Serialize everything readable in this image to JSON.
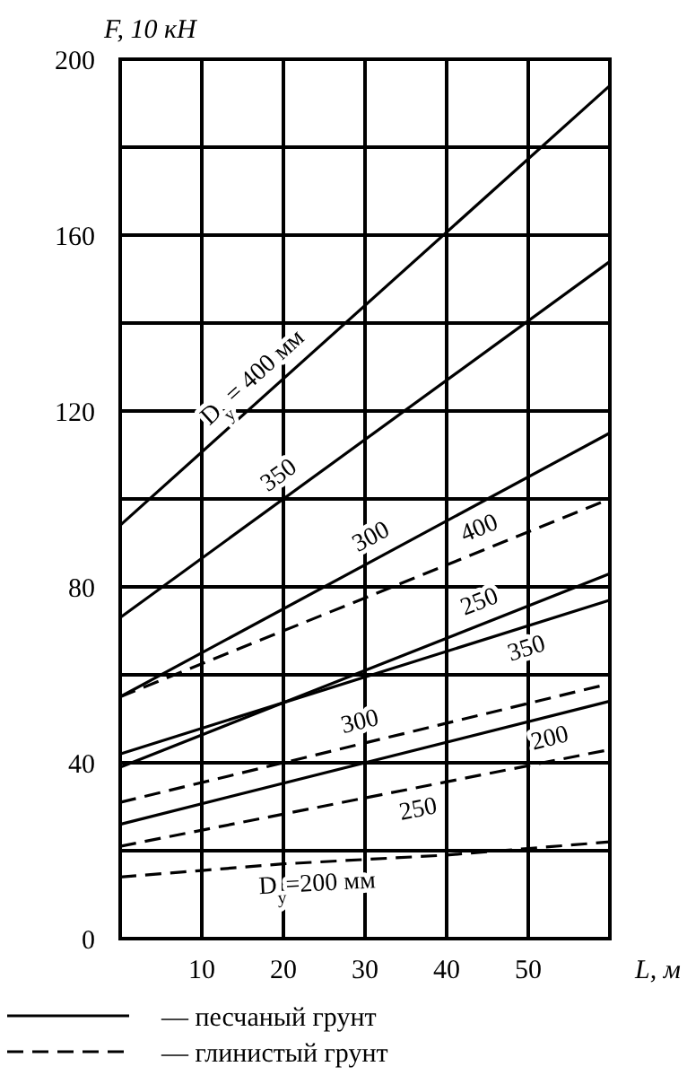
{
  "chart_data": {
    "type": "line",
    "title": null,
    "ylabel": "F, 10 кН",
    "xlabel": "L, м",
    "x": [
      0,
      60
    ],
    "xlim": [
      0,
      60
    ],
    "ylim": [
      0,
      200
    ],
    "xticks": [
      10,
      20,
      30,
      40,
      50
    ],
    "yticks": [
      0,
      {
        "value": 20,
        "label": null
      },
      40,
      {
        "value": 60,
        "label": null
      },
      80,
      {
        "value": 100,
        "label": null
      },
      120,
      {
        "value": 140,
        "label": null
      },
      160,
      {
        "value": 180,
        "label": null
      },
      200
    ],
    "grid": true,
    "legend": "bottom",
    "marker": "none",
    "series": [
      {
        "name": "— песчаный грунт",
        "color": "#000000",
        "line_style": "solid",
        "values": [
          94,
          194
        ]
      },
      {
        "color": "#000000",
        "line_style": "solid",
        "values": [
          73,
          154
        ]
      },
      {
        "color": "#000000",
        "line_style": "solid",
        "values": [
          55,
          115
        ]
      },
      {
        "color": "#000000",
        "line_style": "solid",
        "values": [
          39,
          83
        ]
      },
      {
        "color": "#000000",
        "line_style": "solid",
        "values": [
          42,
          77
        ]
      },
      {
        "color": "#000000",
        "line_style": "solid",
        "values": [
          26,
          54
        ]
      },
      {
        "name": "— глинистый грунт",
        "color": "#000000",
        "line_style": "dashed",
        "values": [
          55,
          100
        ]
      },
      {
        "color": "#000000",
        "line_style": "dashed",
        "values": [
          31,
          58
        ]
      },
      {
        "color": "#000000",
        "line_style": "dashed",
        "values": [
          21,
          43
        ]
      },
      {
        "color": "#000000",
        "line_style": "dashed",
        "x": [
          0,
          10,
          20,
          30,
          40,
          50,
          60
        ],
        "values": [
          14,
          15.5,
          17,
          18,
          19,
          20.5,
          22
        ]
      }
    ],
    "annotations": [
      {
        "text": "D$_{y}$ = 400 мм",
        "x": 18,
        "y": 124
      },
      {
        "text": "350",
        "x": 21,
        "y": 101.35
      },
      {
        "text": "300",
        "x": 32,
        "y": 87
      },
      {
        "text": "400",
        "x": 45,
        "y": 88.75
      },
      {
        "text": "250",
        "x": 45,
        "y": 72
      },
      {
        "text": "350",
        "x": 49,
        "y": 70.58
      },
      {
        "text": "300",
        "x": 30,
        "y": 44.5
      },
      {
        "text": "200",
        "x": 52,
        "y": 50.27
      },
      {
        "text": "250",
        "x": 36,
        "y": 34.2
      },
      {
        "text": "D$_{y}$=200 мм",
        "x": 24,
        "y": 17.4
      }
    ]
  }
}
